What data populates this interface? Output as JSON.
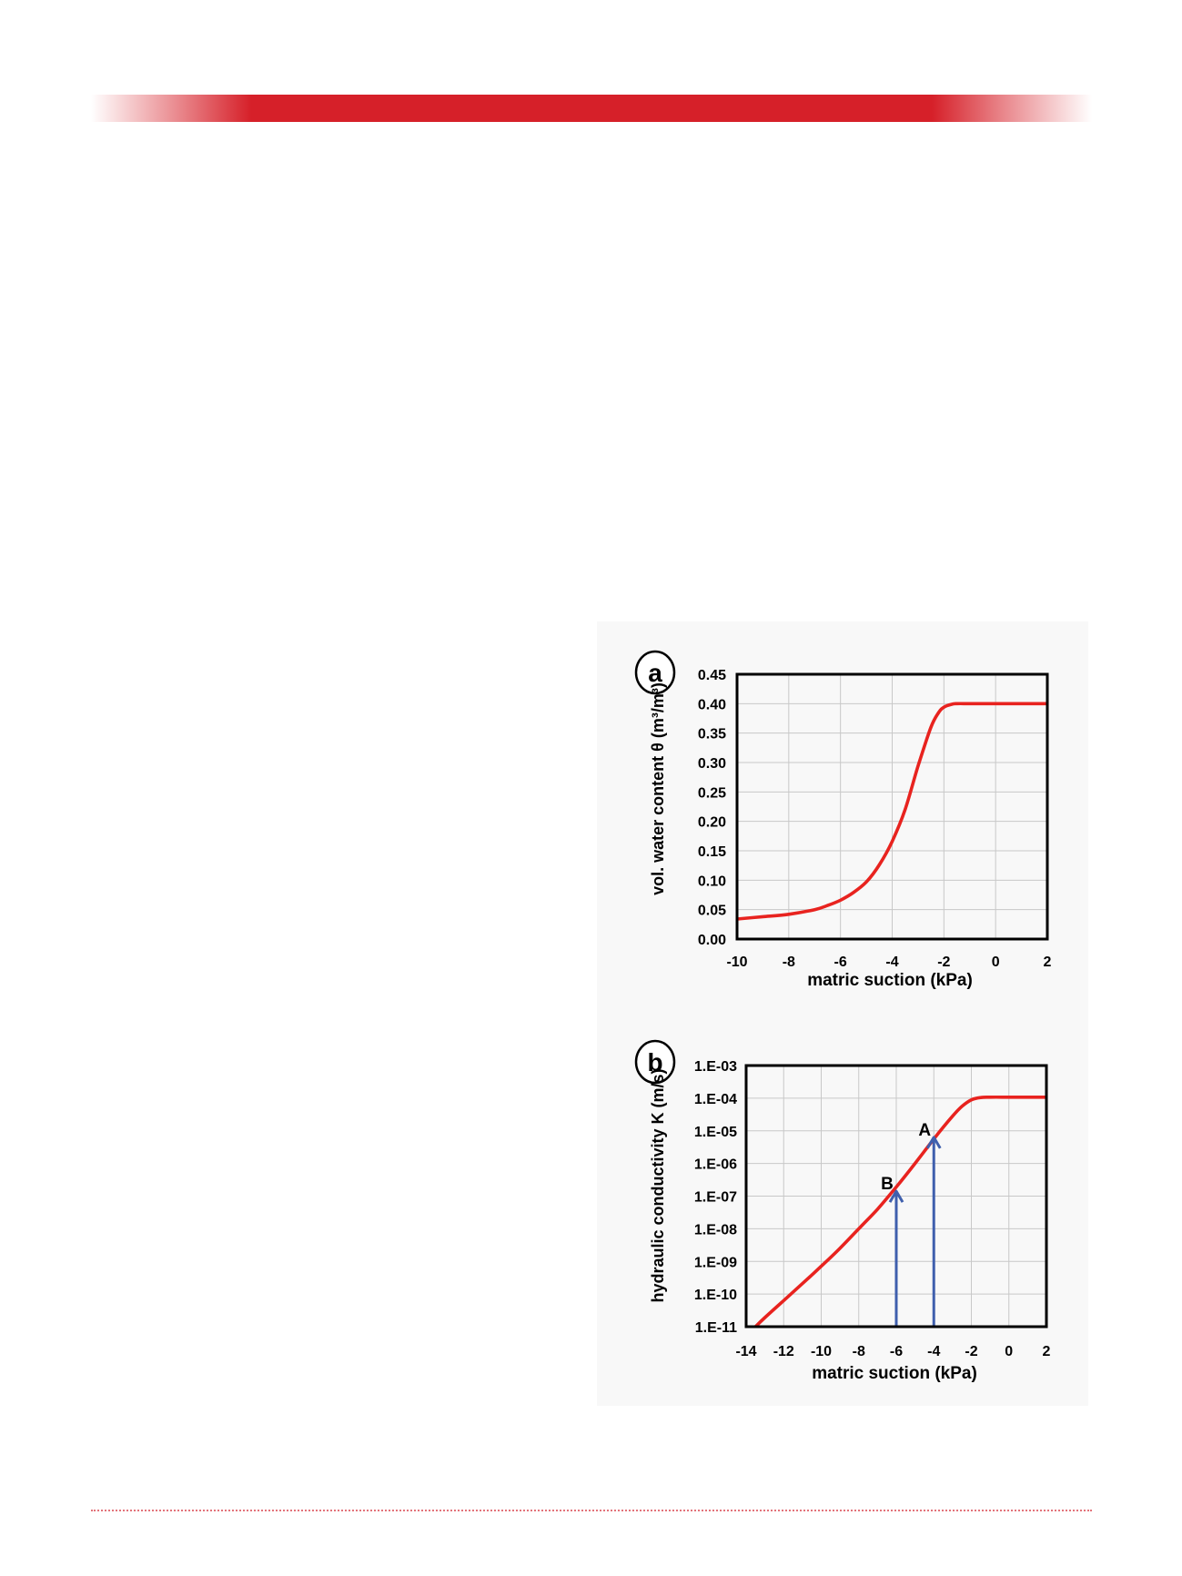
{
  "colors": {
    "brand_red": "#d62029",
    "curve": "#e8231f",
    "arrow": "#3f5fad",
    "grid": "#c8c8c8",
    "panel_bg": "#f8f8f8"
  },
  "chart_data": [
    {
      "type": "line",
      "panel_label": "a",
      "xlabel": "matric suction (kPa)",
      "ylabel": "vol. water content θ (m³/m³)",
      "xlim": [
        -10,
        2
      ],
      "ylim": [
        0,
        0.45
      ],
      "x_ticks": [
        "-10",
        "-8",
        "-6",
        "-4",
        "-2",
        "0",
        "2"
      ],
      "y_ticks": [
        "0.00",
        "0.05",
        "0.10",
        "0.15",
        "0.20",
        "0.25",
        "0.30",
        "0.35",
        "0.40",
        "0.45"
      ],
      "grid": true,
      "series": [
        {
          "x": [
            -10,
            -9,
            -8,
            -7,
            -6.5,
            -6,
            -5.5,
            -5,
            -4.5,
            -4,
            -3.5,
            -3,
            -2.5,
            -2.2,
            -2,
            -1.7,
            -1.5,
            -1,
            0,
            1,
            2
          ],
          "y": [
            0.034,
            0.038,
            0.042,
            0.05,
            0.057,
            0.066,
            0.079,
            0.097,
            0.126,
            0.166,
            0.22,
            0.294,
            0.36,
            0.385,
            0.394,
            0.399,
            0.4,
            0.4,
            0.4,
            0.4,
            0.4
          ]
        }
      ]
    },
    {
      "type": "line",
      "panel_label": "b",
      "xlabel": "matric suction (kPa)",
      "ylabel": "hydraulic conductivity K (m/s)",
      "xlim": [
        -14,
        2
      ],
      "ylim_log10": [
        -11,
        -3
      ],
      "log_y": true,
      "x_ticks": [
        "-14",
        "-12",
        "-10",
        "-8",
        "-6",
        "-4",
        "-2",
        "0",
        "2"
      ],
      "y_ticks": [
        "1.E-11",
        "1.E-10",
        "1.E-09",
        "1.E-08",
        "1.E-07",
        "1.E-06",
        "1.E-05",
        "1.E-04",
        "1.E-03"
      ],
      "grid": true,
      "series": [
        {
          "x": [
            -13.5,
            -13,
            -12,
            -11,
            -10,
            -9,
            -8,
            -7,
            -6,
            -5,
            -4,
            -3,
            -2.5,
            -2,
            -1.5,
            -1,
            0,
            1,
            2
          ],
          "log10_K": [
            -11,
            -10.72,
            -10.2,
            -9.68,
            -9.15,
            -8.6,
            -8.0,
            -7.4,
            -6.72,
            -6.0,
            -5.25,
            -4.55,
            -4.25,
            -4.05,
            -3.98,
            -3.97,
            -3.97,
            -3.97,
            -3.97
          ]
        }
      ],
      "annotations": [
        {
          "label": "A",
          "x": -4,
          "log10_K": -5.2
        },
        {
          "label": "B",
          "x": -6,
          "log10_K": -6.85
        }
      ]
    }
  ]
}
